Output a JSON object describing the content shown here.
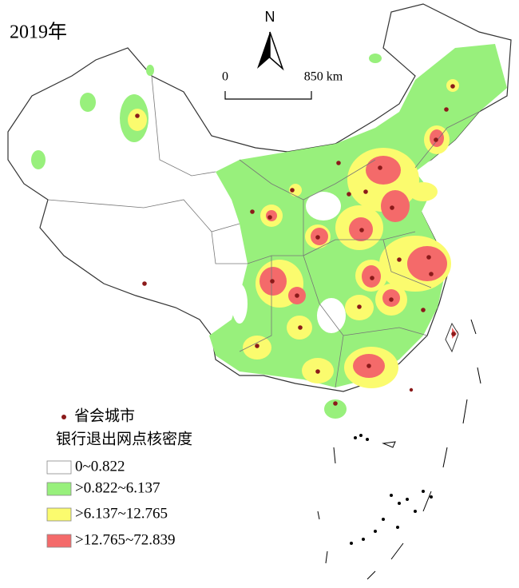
{
  "title": "2019年",
  "north_label": "N",
  "scale_bar": {
    "start": "0",
    "end": "850 km"
  },
  "legend": {
    "point_label": "省会城市",
    "title": "银行退出网点核密度",
    "items": [
      {
        "label": "0~0.822",
        "color": "#ffffff"
      },
      {
        "label": ">0.822~6.137",
        "color": "#98f07c"
      },
      {
        "label": ">6.137~12.765",
        "color": "#fbfb6e"
      },
      {
        "label": ">12.765~72.839",
        "color": "#f46a6a"
      }
    ]
  }
}
